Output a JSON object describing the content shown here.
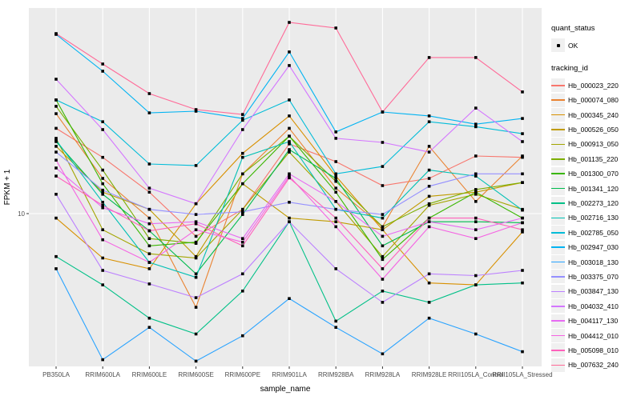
{
  "figure": {
    "background": "#FFFFFF",
    "panel_background": "#EBEBEB",
    "gridline_color": "#FFFFFF",
    "tick_color": "#333333",
    "axis_text_color": "#4D4D4D",
    "point_color": "#000000"
  },
  "legend": {
    "quant_status_title": "quant_status",
    "quant_status_value": "OK",
    "tracking_id_title": "tracking_id"
  },
  "chart_data": {
    "type": "line",
    "title": "",
    "xlabel": "sample_name",
    "ylabel": "FPKM + 1",
    "y_scale": "log10",
    "y_tick_labels": [
      "10"
    ],
    "y_tick_value": 10,
    "ylim_fpkm": [
      1.7,
      100
    ],
    "grid": "major",
    "legend_position": "right",
    "point_marker": "small black square (quant_status OK)",
    "x_categories": [
      "PB350LA",
      "RRIM600LA",
      "RRIM600LE",
      "RRIM600SE",
      "RRIM600PE",
      "RRIM901LA",
      "RRIM928BA",
      "RRIM928LA",
      "RRIM928LE",
      "RRII105LA_Control",
      "RRII105LA_Stressed"
    ],
    "series": [
      {
        "name": "Hb_000023_220",
        "color": "#F8766D",
        "values": [
          26.7,
          19.1,
          12.8,
          7.7,
          10.5,
          22.3,
          18.2,
          13.8,
          15.0,
          19.4,
          19.1
        ]
      },
      {
        "name": "Hb_000074_080",
        "color": "#EA8331",
        "values": [
          31.6,
          15.0,
          9.5,
          3.4,
          15.8,
          26.7,
          13.4,
          8.6,
          21.7,
          11.5,
          19.4
        ]
      },
      {
        "name": "Hb_000345_240",
        "color": "#D89000",
        "values": [
          9.5,
          6.0,
          5.3,
          11.2,
          20.0,
          30.8,
          15.4,
          8.3,
          4.5,
          4.4,
          8.1
        ]
      },
      {
        "name": "Hb_000526_050",
        "color": "#C09B00",
        "values": [
          21.7,
          12.8,
          10.5,
          6.1,
          14.1,
          9.5,
          9.1,
          8.3,
          12.2,
          12.8,
          14.3
        ]
      },
      {
        "name": "Hb_000913_050",
        "color": "#A3A500",
        "values": [
          23.8,
          8.3,
          6.3,
          6.0,
          10.5,
          20.3,
          11.5,
          6.1,
          11.0,
          12.5,
          10.5
        ]
      },
      {
        "name": "Hb_001135_220",
        "color": "#7CAE00",
        "values": [
          34.4,
          16.5,
          7.5,
          7.1,
          15.8,
          24.4,
          14.5,
          8.6,
          11.2,
          13.2,
          14.3
        ]
      },
      {
        "name": "Hb_001300_070",
        "color": "#39B600",
        "values": [
          37.0,
          14.1,
          6.9,
          7.2,
          14.1,
          24.4,
          12.8,
          5.9,
          9.5,
          12.8,
          9.5
        ]
      },
      {
        "name": "Hb_001341_120",
        "color": "#00BB4E",
        "values": [
          22.9,
          12.5,
          8.2,
          5.0,
          9.9,
          20.9,
          15.0,
          6.9,
          9.1,
          9.1,
          9.0
        ]
      },
      {
        "name": "Hb_002273_120",
        "color": "#00C087",
        "values": [
          6.1,
          4.4,
          3.0,
          2.5,
          4.1,
          9.1,
          2.9,
          4.1,
          3.6,
          4.4,
          4.5
        ]
      },
      {
        "name": "Hb_002716_130",
        "color": "#00C0B4",
        "values": [
          23.3,
          11.4,
          5.7,
          4.8,
          19.1,
          22.9,
          10.5,
          9.5,
          16.5,
          15.4,
          10.4
        ]
      },
      {
        "name": "Hb_002785_050",
        "color": "#00BCD8",
        "values": [
          37.0,
          28.8,
          17.7,
          17.4,
          29.3,
          37.0,
          15.8,
          17.2,
          28.8,
          27.2,
          25.1
        ]
      },
      {
        "name": "Hb_002947_030",
        "color": "#00B3F2",
        "values": [
          78.7,
          51.5,
          31.9,
          32.5,
          29.9,
          64.3,
          25.6,
          32.2,
          30.8,
          28.0,
          29.9
        ]
      },
      {
        "name": "Hb_003018_130",
        "color": "#29A3FF",
        "values": [
          5.3,
          1.86,
          2.7,
          1.83,
          2.45,
          3.76,
          2.7,
          1.99,
          3.0,
          2.5,
          2.04
        ]
      },
      {
        "name": "Hb_003375_070",
        "color": "#9590FF",
        "values": [
          20.3,
          13.1,
          10.5,
          9.9,
          10.2,
          11.4,
          10.5,
          9.9,
          13.7,
          15.8,
          15.8
        ]
      },
      {
        "name": "Hb_003847_130",
        "color": "#BC80FF",
        "values": [
          12.5,
          5.2,
          4.45,
          3.8,
          5.0,
          9.1,
          5.3,
          3.6,
          5.0,
          4.9,
          5.2
        ]
      },
      {
        "name": "Hb_004032_410",
        "color": "#D476FF",
        "values": [
          47.0,
          26.3,
          13.4,
          11.2,
          26.3,
          55.0,
          23.8,
          22.7,
          20.3,
          33.7,
          22.9
        ]
      },
      {
        "name": "Hb_004117_130",
        "color": "#E76BF3",
        "values": [
          16.9,
          10.7,
          8.9,
          9.1,
          7.5,
          15.8,
          11.5,
          7.7,
          9.1,
          8.3,
          9.5
        ]
      },
      {
        "name": "Hb_004412_010",
        "color": "#F564E3",
        "values": [
          18.5,
          7.4,
          5.7,
          8.3,
          7.2,
          15.4,
          8.6,
          4.7,
          8.6,
          7.5,
          9.0
        ]
      },
      {
        "name": "Hb_005098_010",
        "color": "#FF62BC",
        "values": [
          15.4,
          11.0,
          8.2,
          8.9,
          6.9,
          15.1,
          9.5,
          5.3,
          9.5,
          9.5,
          8.3
        ]
      },
      {
        "name": "Hb_007632_240",
        "color": "#FF6A98",
        "values": [
          79.4,
          56.0,
          39.8,
          33.1,
          31.3,
          90.4,
          84.7,
          32.2,
          60.3,
          60.3,
          40.6
        ]
      }
    ]
  }
}
